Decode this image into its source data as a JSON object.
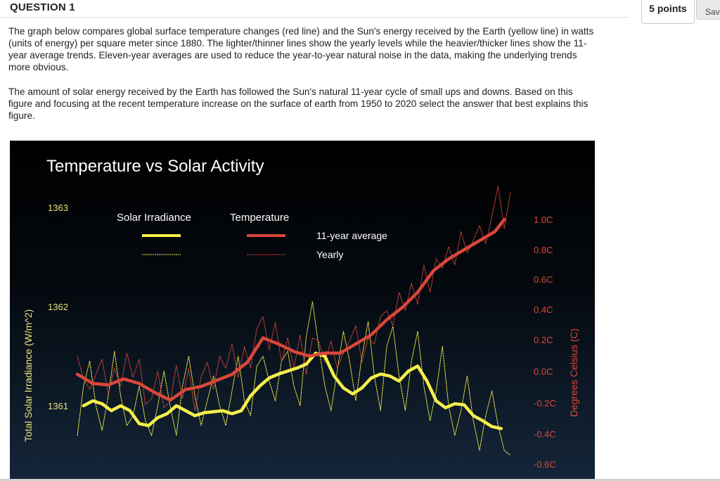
{
  "question": {
    "title": "QUESTION 1",
    "points": "5 points",
    "save_label": "Save",
    "paragraph1": "The graph below compares global surface temperature changes (red line) and the Sun's energy received by the Earth (yellow line) in watts (units of energy) per square meter since 1880. The lighter/thinner lines show the yearly levels while the heavier/thicker lines show the 11-year average trends. Eleven-year averages are used to reduce the year-to-year natural noise in the data, making the underlying trends more obvious.",
    "paragraph2": "The amount of solar energy received by the Earth has followed the Sun's natural 11-year cycle of small ups and downs. Based on this figure and focusing at the recent temperature increase on the surface of earth from 1950 to 2020 select the answer that best explains this figure."
  },
  "colors": {
    "solar": "#f5f04a",
    "temperature": "#d9473b",
    "axis_text_left": "#e8e27a",
    "axis_text_right": "#d9473b"
  },
  "chart_data": {
    "type": "line",
    "title": "Temperature vs Solar Activity",
    "ylabel_left": "Total Solar Irradiance (W/m^2)",
    "ylabel_right": "Degrees Celsius (C)",
    "left_ticks": [
      "1363",
      "1362",
      "1361"
    ],
    "right_ticks": [
      "1.0C",
      "0.8C",
      "0.6C",
      "0.4C",
      "0.2C",
      "0.0C",
      "-0.2C",
      "-0.4C",
      "-0.6C"
    ],
    "legend": {
      "solar_label": "Solar Irradiance",
      "temp_label": "Temperature",
      "avg_label": "11-year average",
      "yearly_label": "Yearly"
    },
    "xlim": [
      1880,
      2020
    ],
    "ylim_left": [
      1360.6,
      1363.2
    ],
    "ylim_right": [
      -0.65,
      1.05
    ],
    "series": [
      {
        "name": "Temperature",
        "kind": "11-year average",
        "x": [
          1880,
          1885,
          1890,
          1895,
          1900,
          1905,
          1910,
          1915,
          1920,
          1925,
          1930,
          1935,
          1940,
          1945,
          1950,
          1955,
          1960,
          1965,
          1970,
          1975,
          1980,
          1985,
          1990,
          1995,
          2000,
          2005,
          2010,
          2015,
          2018
        ],
        "values": [
          -0.02,
          -0.08,
          -0.09,
          -0.05,
          -0.08,
          -0.14,
          -0.19,
          -0.12,
          -0.1,
          -0.06,
          -0.02,
          0.06,
          0.22,
          0.18,
          0.13,
          0.1,
          0.12,
          0.12,
          0.18,
          0.24,
          0.34,
          0.42,
          0.52,
          0.66,
          0.74,
          0.8,
          0.86,
          0.92,
          1.0
        ]
      },
      {
        "name": "Temperature",
        "kind": "Yearly",
        "x": [
          1880,
          1882,
          1884,
          1886,
          1888,
          1890,
          1892,
          1894,
          1896,
          1898,
          1900,
          1902,
          1904,
          1906,
          1908,
          1910,
          1912,
          1914,
          1916,
          1918,
          1920,
          1922,
          1924,
          1926,
          1928,
          1930,
          1932,
          1934,
          1936,
          1938,
          1940,
          1942,
          1944,
          1946,
          1948,
          1950,
          1952,
          1954,
          1956,
          1958,
          1960,
          1962,
          1964,
          1966,
          1968,
          1970,
          1972,
          1974,
          1976,
          1978,
          1980,
          1982,
          1984,
          1986,
          1988,
          1990,
          1992,
          1994,
          1996,
          1998,
          2000,
          2002,
          2004,
          2006,
          2008,
          2010,
          2012,
          2014,
          2016,
          2018,
          2020
        ],
        "values": [
          0.1,
          -0.05,
          -0.12,
          -0.02,
          0.08,
          -0.15,
          0.02,
          -0.1,
          0.12,
          -0.04,
          0.08,
          -0.22,
          -0.18,
          0.0,
          -0.24,
          -0.2,
          0.04,
          -0.18,
          0.02,
          -0.26,
          -0.04,
          0.06,
          -0.12,
          0.1,
          0.02,
          0.18,
          -0.04,
          0.16,
          0.02,
          0.28,
          0.36,
          0.14,
          0.32,
          0.06,
          0.22,
          0.02,
          0.24,
          -0.02,
          0.22,
          0.2,
          0.06,
          0.2,
          0.02,
          0.12,
          0.2,
          0.3,
          0.06,
          0.22,
          0.18,
          0.36,
          0.4,
          0.3,
          0.52,
          0.4,
          0.58,
          0.44,
          0.7,
          0.52,
          0.74,
          0.68,
          0.82,
          0.7,
          0.92,
          0.78,
          0.86,
          0.96,
          0.84,
          1.02,
          1.22,
          0.94,
          1.18
        ]
      },
      {
        "name": "Solar Irradiance",
        "kind": "11-year average",
        "x": [
          1882,
          1885,
          1888,
          1891,
          1894,
          1897,
          1900,
          1903,
          1906,
          1909,
          1912,
          1915,
          1918,
          1921,
          1924,
          1927,
          1930,
          1933,
          1936,
          1939,
          1942,
          1945,
          1948,
          1951,
          1954,
          1957,
          1960,
          1963,
          1966,
          1969,
          1972,
          1975,
          1978,
          1981,
          1984,
          1987,
          1990,
          1993,
          1996,
          1999,
          2002,
          2005,
          2008,
          2011,
          2014,
          2017
        ],
        "values": [
          1361.0,
          1361.05,
          1361.02,
          1360.95,
          1361.0,
          1360.95,
          1360.82,
          1360.8,
          1360.88,
          1360.92,
          1361.0,
          1360.95,
          1360.9,
          1360.93,
          1360.94,
          1360.95,
          1360.92,
          1360.95,
          1361.1,
          1361.2,
          1361.28,
          1361.32,
          1361.35,
          1361.38,
          1361.42,
          1361.53,
          1361.5,
          1361.3,
          1361.18,
          1361.12,
          1361.18,
          1361.28,
          1361.32,
          1361.3,
          1361.25,
          1361.35,
          1361.4,
          1361.25,
          1361.05,
          1360.98,
          1361.02,
          1361.01,
          1360.9,
          1360.85,
          1360.79,
          1360.77
        ]
      },
      {
        "name": "Solar Irradiance",
        "kind": "Yearly",
        "x": [
          1880,
          1882,
          1884,
          1886,
          1888,
          1890,
          1892,
          1894,
          1896,
          1898,
          1900,
          1902,
          1904,
          1906,
          1908,
          1910,
          1912,
          1914,
          1916,
          1918,
          1920,
          1922,
          1924,
          1926,
          1928,
          1930,
          1932,
          1934,
          1936,
          1938,
          1940,
          1942,
          1944,
          1946,
          1948,
          1950,
          1952,
          1954,
          1956,
          1958,
          1960,
          1962,
          1964,
          1966,
          1968,
          1970,
          1972,
          1974,
          1976,
          1978,
          1980,
          1982,
          1984,
          1986,
          1988,
          1990,
          1992,
          1994,
          1996,
          1998,
          2000,
          2002,
          2004,
          2006,
          2008,
          2010,
          2012,
          2014,
          2016,
          2018,
          2020
        ],
        "values": [
          1360.7,
          1361.2,
          1361.45,
          1361.0,
          1360.75,
          1361.1,
          1361.55,
          1361.1,
          1360.8,
          1360.9,
          1361.2,
          1360.85,
          1360.7,
          1361.0,
          1361.35,
          1361.0,
          1360.7,
          1361.2,
          1361.5,
          1361.1,
          1360.8,
          1361.05,
          1361.3,
          1361.0,
          1360.8,
          1361.15,
          1361.5,
          1361.05,
          1360.9,
          1361.4,
          1361.5,
          1361.25,
          1361.05,
          1361.45,
          1361.55,
          1361.2,
          1361.0,
          1361.7,
          1362.05,
          1361.6,
          1361.2,
          1360.95,
          1361.35,
          1361.75,
          1361.45,
          1361.05,
          1361.5,
          1361.85,
          1361.3,
          1360.95,
          1361.6,
          1361.8,
          1361.3,
          1360.95,
          1361.45,
          1361.75,
          1361.2,
          1360.85,
          1361.15,
          1361.6,
          1361.0,
          1360.7,
          1360.95,
          1361.3,
          1360.85,
          1360.55,
          1360.9,
          1361.15,
          1360.8,
          1360.55,
          1360.5
        ]
      }
    ]
  }
}
